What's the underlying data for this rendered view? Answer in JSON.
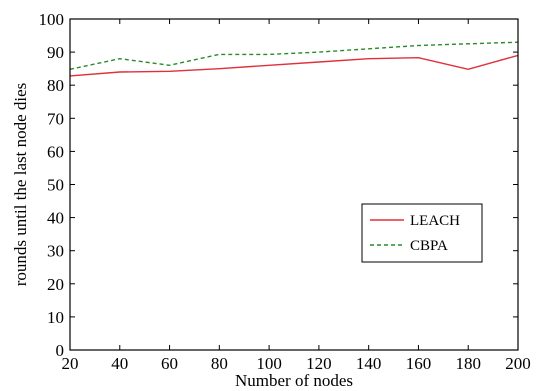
{
  "chart_data": {
    "type": "line",
    "title": "",
    "xlabel": "Number of nodes",
    "ylabel": "rounds until the last node dies",
    "xlim": [
      20,
      200
    ],
    "ylim": [
      0,
      100
    ],
    "x_ticks": [
      20,
      40,
      60,
      80,
      100,
      120,
      140,
      160,
      180,
      200
    ],
    "y_ticks": [
      0,
      10,
      20,
      30,
      40,
      50,
      60,
      70,
      80,
      90,
      100
    ],
    "grid": false,
    "legend_position": "lower-right",
    "series": [
      {
        "name": "LEACH",
        "color": "#e0303a",
        "dash": "solid",
        "x": [
          20,
          40,
          60,
          80,
          100,
          120,
          140,
          160,
          180,
          200
        ],
        "y": [
          82.8,
          84,
          84.2,
          85,
          86,
          87,
          88,
          88.3,
          84.8,
          89
        ]
      },
      {
        "name": "CBPA",
        "color": "#2a8a2a",
        "dash": "dashed",
        "x": [
          20,
          40,
          60,
          80,
          100,
          120,
          140,
          160,
          180,
          200
        ],
        "y": [
          84.8,
          88,
          86,
          89.3,
          89.3,
          90,
          91,
          92,
          92.5,
          93
        ]
      }
    ]
  }
}
